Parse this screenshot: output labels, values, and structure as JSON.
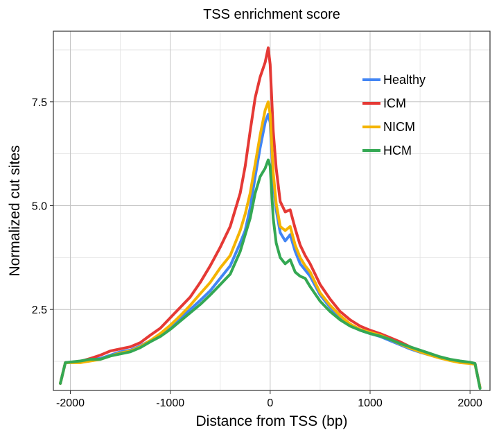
{
  "chart_data": {
    "type": "line",
    "title": "TSS enrichment score",
    "xlabel": "Distance from TSS (bp)",
    "ylabel": "Normalized cut sites",
    "xlim": [
      -2170,
      2200
    ],
    "ylim": [
      0.55,
      9.2
    ],
    "xticks": [
      -2000,
      -1000,
      0,
      1000,
      2000
    ],
    "xtick_labels": [
      "-2000",
      "-1000",
      "0",
      "1000",
      "2000"
    ],
    "yticks": [
      2.5,
      5.0,
      7.5
    ],
    "ytick_labels": [
      "2.5",
      "5.0",
      "7.5"
    ],
    "grid": true,
    "legend_position": "top-right",
    "series": [
      {
        "name": "Healthy",
        "color": "#4285f4",
        "x": [
          -2100,
          -2050,
          -1900,
          -1800,
          -1700,
          -1600,
          -1500,
          -1400,
          -1300,
          -1200,
          -1100,
          -1000,
          -900,
          -800,
          -700,
          -600,
          -500,
          -400,
          -300,
          -250,
          -200,
          -150,
          -100,
          -50,
          -20,
          0,
          30,
          60,
          100,
          150,
          200,
          250,
          300,
          350,
          400,
          500,
          600,
          700,
          800,
          900,
          1000,
          1100,
          1200,
          1300,
          1400,
          1500,
          1600,
          1700,
          1800,
          1900,
          2000,
          2050,
          2100
        ],
        "values": [
          0.72,
          1.22,
          1.25,
          1.3,
          1.32,
          1.4,
          1.48,
          1.52,
          1.62,
          1.75,
          1.9,
          2.1,
          2.28,
          2.5,
          2.72,
          2.95,
          3.25,
          3.55,
          4.1,
          4.4,
          4.95,
          5.7,
          6.4,
          7.0,
          7.2,
          7.0,
          5.6,
          4.9,
          4.35,
          4.15,
          4.3,
          3.9,
          3.6,
          3.45,
          3.3,
          2.85,
          2.55,
          2.3,
          2.12,
          2.0,
          1.92,
          1.85,
          1.75,
          1.65,
          1.55,
          1.47,
          1.4,
          1.33,
          1.28,
          1.24,
          1.22,
          1.2,
          0.62
        ]
      },
      {
        "name": "ICM",
        "color": "#e53935",
        "x": [
          -2100,
          -2050,
          -1900,
          -1800,
          -1700,
          -1600,
          -1500,
          -1400,
          -1300,
          -1200,
          -1100,
          -1000,
          -900,
          -800,
          -700,
          -600,
          -500,
          -400,
          -300,
          -250,
          -200,
          -150,
          -100,
          -50,
          -20,
          0,
          30,
          60,
          100,
          150,
          200,
          250,
          300,
          350,
          400,
          500,
          600,
          700,
          800,
          900,
          1000,
          1100,
          1200,
          1300,
          1400,
          1500,
          1600,
          1700,
          1800,
          1900,
          2000,
          2050,
          2100
        ],
        "values": [
          0.72,
          1.22,
          1.25,
          1.32,
          1.4,
          1.5,
          1.55,
          1.6,
          1.7,
          1.88,
          2.05,
          2.3,
          2.55,
          2.8,
          3.15,
          3.55,
          4.0,
          4.5,
          5.3,
          5.95,
          6.8,
          7.6,
          8.1,
          8.45,
          8.8,
          8.4,
          6.8,
          5.9,
          5.1,
          4.85,
          4.9,
          4.45,
          4.05,
          3.8,
          3.6,
          3.1,
          2.75,
          2.45,
          2.25,
          2.1,
          2.0,
          1.92,
          1.82,
          1.72,
          1.6,
          1.5,
          1.42,
          1.35,
          1.28,
          1.24,
          1.22,
          1.2,
          0.62
        ]
      },
      {
        "name": "NICM",
        "color": "#f4b400",
        "x": [
          -2100,
          -2050,
          -1900,
          -1800,
          -1700,
          -1600,
          -1500,
          -1400,
          -1300,
          -1200,
          -1100,
          -1000,
          -900,
          -800,
          -700,
          -600,
          -500,
          -400,
          -300,
          -250,
          -200,
          -150,
          -100,
          -50,
          -20,
          0,
          30,
          60,
          100,
          150,
          200,
          250,
          300,
          350,
          400,
          500,
          600,
          700,
          800,
          900,
          1000,
          1100,
          1200,
          1300,
          1400,
          1500,
          1600,
          1700,
          1800,
          1900,
          2000,
          2050,
          2100
        ],
        "values": [
          0.72,
          1.22,
          1.22,
          1.26,
          1.3,
          1.38,
          1.45,
          1.5,
          1.6,
          1.75,
          1.92,
          2.12,
          2.35,
          2.6,
          2.88,
          3.15,
          3.5,
          3.8,
          4.4,
          4.8,
          5.3,
          6.0,
          6.7,
          7.3,
          7.5,
          7.2,
          5.8,
          5.05,
          4.5,
          4.4,
          4.5,
          4.05,
          3.75,
          3.55,
          3.4,
          2.9,
          2.6,
          2.35,
          2.15,
          2.02,
          1.95,
          1.88,
          1.78,
          1.67,
          1.57,
          1.48,
          1.4,
          1.33,
          1.27,
          1.22,
          1.2,
          1.18,
          0.62
        ]
      },
      {
        "name": "HCM",
        "color": "#34a853",
        "x": [
          -2100,
          -2050,
          -1900,
          -1800,
          -1700,
          -1600,
          -1500,
          -1400,
          -1300,
          -1200,
          -1100,
          -1000,
          -900,
          -800,
          -700,
          -600,
          -500,
          -400,
          -300,
          -250,
          -200,
          -150,
          -100,
          -50,
          -20,
          0,
          30,
          60,
          100,
          150,
          200,
          250,
          300,
          350,
          400,
          500,
          600,
          700,
          800,
          900,
          1000,
          1100,
          1200,
          1300,
          1400,
          1500,
          1600,
          1700,
          1800,
          1900,
          2000,
          2050,
          2100
        ],
        "values": [
          0.72,
          1.22,
          1.26,
          1.3,
          1.3,
          1.38,
          1.43,
          1.48,
          1.58,
          1.72,
          1.85,
          2.02,
          2.22,
          2.42,
          2.62,
          2.85,
          3.1,
          3.35,
          3.9,
          4.3,
          4.7,
          5.3,
          5.7,
          5.9,
          6.1,
          5.95,
          4.7,
          4.1,
          3.75,
          3.6,
          3.7,
          3.4,
          3.3,
          3.25,
          3.05,
          2.7,
          2.45,
          2.25,
          2.1,
          2.0,
          1.92,
          1.86,
          1.78,
          1.68,
          1.6,
          1.52,
          1.44,
          1.36,
          1.3,
          1.26,
          1.23,
          1.2,
          0.6
        ]
      }
    ]
  }
}
